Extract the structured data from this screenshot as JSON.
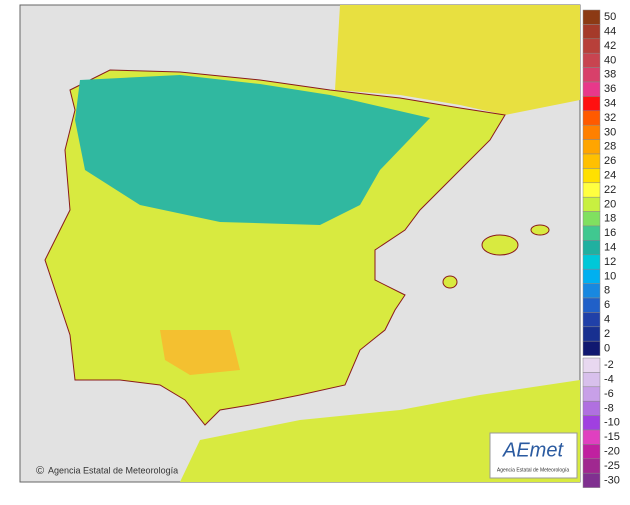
{
  "footer": {
    "copyright": "Agencia Estatal de Meteorología"
  },
  "logo": {
    "name": "AEmet",
    "subtitle": "Agencia Estatal de Meteorología"
  },
  "legend": {
    "levels": [
      {
        "label": "50",
        "color": "#8c3a14"
      },
      {
        "label": "44",
        "color": "#a53a2a"
      },
      {
        "label": "42",
        "color": "#b8403a"
      },
      {
        "label": "40",
        "color": "#c84450"
      },
      {
        "label": "38",
        "color": "#d8406a"
      },
      {
        "label": "36",
        "color": "#e8388a"
      },
      {
        "label": "34",
        "color": "#ff1010"
      },
      {
        "label": "32",
        "color": "#ff5a00"
      },
      {
        "label": "30",
        "color": "#ff8000"
      },
      {
        "label": "28",
        "color": "#ffa500"
      },
      {
        "label": "26",
        "color": "#ffc000"
      },
      {
        "label": "24",
        "color": "#ffe000"
      },
      {
        "label": "22",
        "color": "#ffff40"
      },
      {
        "label": "20",
        "color": "#c8f040"
      },
      {
        "label": "18",
        "color": "#80e060"
      },
      {
        "label": "16",
        "color": "#40c890"
      },
      {
        "label": "14",
        "color": "#20b0a0"
      },
      {
        "label": "12",
        "color": "#00c8d8"
      },
      {
        "label": "10",
        "color": "#00b0f0"
      },
      {
        "label": "8",
        "color": "#1888e0"
      },
      {
        "label": "6",
        "color": "#2060c8"
      },
      {
        "label": "4",
        "color": "#2040a8"
      },
      {
        "label": "2",
        "color": "#183090"
      },
      {
        "label": "0",
        "color": "#101870"
      },
      {
        "label": "-2",
        "color": "#e8d8f0"
      },
      {
        "label": "-4",
        "color": "#d8c0ec"
      },
      {
        "label": "-6",
        "color": "#c8a0e8"
      },
      {
        "label": "-8",
        "color": "#b070e0"
      },
      {
        "label": "-10",
        "color": "#a040e0"
      },
      {
        "label": "-15",
        "color": "#e040c0"
      },
      {
        "label": "-20",
        "color": "#c020a0"
      },
      {
        "label": "-25",
        "color": "#a02890"
      },
      {
        "label": "-30",
        "color": "#803090"
      }
    ]
  }
}
